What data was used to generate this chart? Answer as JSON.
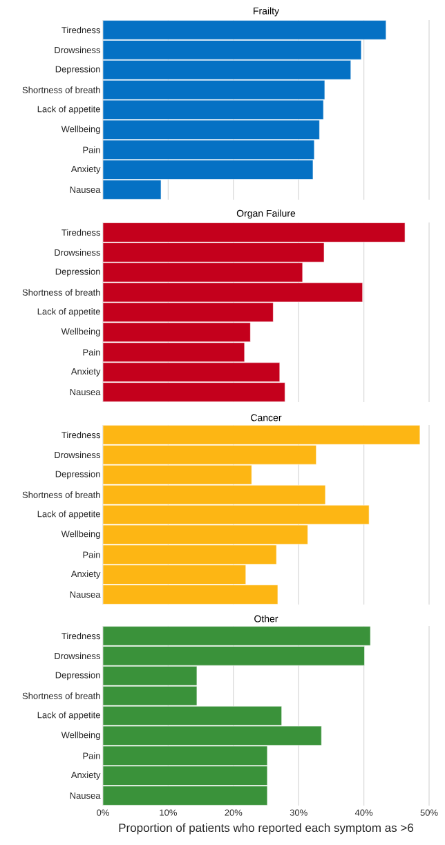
{
  "chart_data": [
    {
      "type": "bar",
      "orientation": "horizontal",
      "title": "Frailty",
      "categories": [
        "Tiredness",
        "Drowsiness",
        "Depression",
        "Shortness of breath",
        "Lack of appetite",
        "Wellbeing",
        "Pain",
        "Anxiety",
        "Nausea"
      ],
      "values": [
        43.4,
        39.6,
        38.0,
        34.0,
        33.8,
        33.2,
        32.4,
        32.2,
        8.9
      ],
      "color": "#0571c4",
      "xlim": [
        0,
        50
      ],
      "xticks": [
        {
          "value": 0,
          "label": null
        },
        {
          "value": 10,
          "label": null
        },
        {
          "value": 20,
          "label": null
        },
        {
          "value": 30,
          "label": null
        },
        {
          "value": 40,
          "label": null
        },
        {
          "value": 50,
          "label": null
        }
      ],
      "grid": "x",
      "tick_labels": "y"
    },
    {
      "type": "bar",
      "orientation": "horizontal",
      "title": "Organ Failure",
      "categories": [
        "Tiredness",
        "Drowsiness",
        "Depression",
        "Shortness of breath",
        "Lack of appetite",
        "Wellbeing",
        "Pain",
        "Anxiety",
        "Nausea"
      ],
      "values": [
        46.3,
        33.9,
        30.6,
        39.8,
        26.1,
        22.6,
        21.7,
        27.1,
        27.9
      ],
      "color": "#c4001c",
      "xlim": [
        0,
        50
      ],
      "xticks": [
        {
          "value": 0,
          "label": null
        },
        {
          "value": 10,
          "label": null
        },
        {
          "value": 20,
          "label": null
        },
        {
          "value": 30,
          "label": null
        },
        {
          "value": 40,
          "label": null
        },
        {
          "value": 50,
          "label": null
        }
      ],
      "grid": "x",
      "tick_labels": "y"
    },
    {
      "type": "bar",
      "orientation": "horizontal",
      "title": "Cancer",
      "categories": [
        "Tiredness",
        "Drowsiness",
        "Depression",
        "Shortness of breath",
        "Lack of appetite",
        "Wellbeing",
        "Pain",
        "Anxiety",
        "Nausea"
      ],
      "values": [
        48.6,
        32.7,
        22.8,
        34.1,
        40.8,
        31.4,
        26.6,
        21.9,
        26.8
      ],
      "color": "#fdb614",
      "xlim": [
        0,
        50
      ],
      "xticks": [
        {
          "value": 0,
          "label": null
        },
        {
          "value": 10,
          "label": null
        },
        {
          "value": 20,
          "label": null
        },
        {
          "value": 30,
          "label": null
        },
        {
          "value": 40,
          "label": null
        },
        {
          "value": 50,
          "label": null
        }
      ],
      "grid": "x",
      "tick_labels": "y"
    },
    {
      "type": "bar",
      "orientation": "horizontal",
      "title": "Other",
      "xlabel": "Proportion of patients who reported each symptom as >6",
      "categories": [
        "Tiredness",
        "Drowsiness",
        "Depression",
        "Shortness of breath",
        "Lack of appetite",
        "Wellbeing",
        "Pain",
        "Anxiety",
        "Nausea"
      ],
      "values": [
        41.0,
        40.1,
        14.4,
        14.4,
        27.4,
        33.5,
        25.2,
        25.2,
        25.2
      ],
      "color": "#3a923a",
      "xlim": [
        0,
        50
      ],
      "xticks": [
        {
          "value": 0,
          "label": "0%"
        },
        {
          "value": 10,
          "label": "10%"
        },
        {
          "value": 20,
          "label": "20%"
        },
        {
          "value": 30,
          "label": "30%"
        },
        {
          "value": 40,
          "label": "40%"
        },
        {
          "value": 50,
          "label": "50%"
        }
      ],
      "grid": "x"
    }
  ]
}
